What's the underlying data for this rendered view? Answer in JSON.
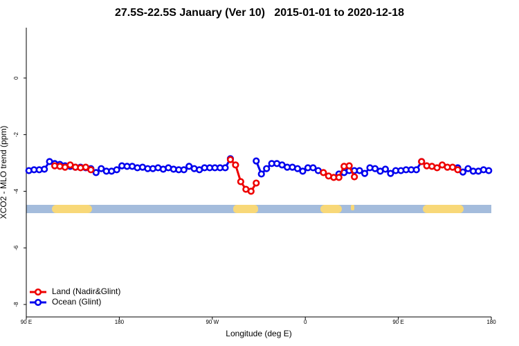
{
  "chart_data": {
    "type": "line",
    "title": "27.5S-22.5S January (Ver 10)   2015-01-01 to 2020-12-18",
    "x_label": "Longitude (deg E)",
    "y_label": "XCO2 - MLO trend (ppm)",
    "xlim": [
      90,
      540
    ],
    "ylim": [
      -8.44,
      1.78
    ],
    "xticks": [
      {
        "value": 90,
        "label": "90 E"
      },
      180,
      {
        "value": 270,
        "label": "90 W"
      },
      {
        "value": 360,
        "label": "0"
      },
      {
        "value": 450,
        "label": "90 E"
      },
      {
        "value": 540,
        "label": "180"
      }
    ],
    "yticks": [
      -8,
      -6,
      -4,
      -2,
      0
    ],
    "legend": "bottom-left",
    "x": [
      92.5,
      97.5,
      102.5,
      107.5,
      112.5,
      117.5,
      122.5,
      127.5,
      132.5,
      137.5,
      142.5,
      147.5,
      152.5,
      157.5,
      162.5,
      167.5,
      172.5,
      177.5,
      182.5,
      187.5,
      192.5,
      197.5,
      202.5,
      207.5,
      212.5,
      217.5,
      222.5,
      227.5,
      232.5,
      237.5,
      242.5,
      247.5,
      252.5,
      257.5,
      262.5,
      267.5,
      272.5,
      277.5,
      282.5,
      287.5,
      292.5,
      297.5,
      302.5,
      307.5,
      312.5,
      317.5,
      322.5,
      327.5,
      332.5,
      337.5,
      342.5,
      347.5,
      352.5,
      357.5,
      362.5,
      367.5,
      372.5,
      377.5,
      382.5,
      387.5,
      392.5,
      397.5,
      402.5,
      407.5,
      412.5,
      417.5,
      422.5,
      427.5,
      432.5,
      437.5,
      442.5,
      447.5,
      452.5,
      457.5,
      462.5,
      467.5,
      472.5,
      477.5,
      482.5,
      487.5,
      492.5,
      497.5,
      502.5,
      507.5,
      512.5,
      517.5,
      522.5,
      527.5,
      532.5,
      537.5
    ],
    "series": [
      {
        "name": "Ocean (Glint)",
        "color": "#0000ee",
        "values": [
          -3.27,
          -3.24,
          -3.24,
          -3.22,
          -2.95,
          -3.02,
          -3.05,
          -3.1,
          -3.12,
          -3.15,
          -3.15,
          -3.17,
          -3.2,
          -3.34,
          -3.2,
          -3.29,
          -3.29,
          -3.24,
          -3.1,
          -3.12,
          -3.12,
          -3.17,
          -3.15,
          -3.2,
          -3.2,
          -3.17,
          -3.22,
          -3.17,
          -3.22,
          -3.24,
          -3.24,
          -3.12,
          -3.2,
          -3.24,
          -3.17,
          -3.17,
          -3.17,
          -3.17,
          -3.17,
          -2.85,
          null,
          null,
          null,
          null,
          -2.93,
          -3.39,
          -3.2,
          -3.02,
          -3.02,
          -3.07,
          -3.15,
          -3.15,
          -3.2,
          -3.29,
          -3.17,
          -3.17,
          -3.27,
          null,
          null,
          null,
          -3.39,
          -3.34,
          -3.27,
          -3.27,
          -3.27,
          -3.37,
          -3.17,
          -3.2,
          -3.29,
          -3.22,
          -3.37,
          -3.27,
          -3.27,
          -3.24,
          -3.24,
          -3.24,
          -2.95,
          null,
          null,
          null,
          null,
          null,
          null,
          -3.17,
          -3.32,
          -3.2,
          -3.29,
          -3.29,
          -3.24,
          -3.27
        ]
      },
      {
        "name": "Land (Nadir&Glint)",
        "color": "#ee0000",
        "values": [
          null,
          null,
          null,
          null,
          null,
          -3.1,
          -3.12,
          -3.15,
          -3.07,
          -3.15,
          -3.17,
          -3.15,
          -3.24,
          null,
          null,
          null,
          null,
          null,
          null,
          null,
          null,
          null,
          null,
          null,
          null,
          null,
          null,
          null,
          null,
          null,
          null,
          null,
          null,
          null,
          null,
          null,
          null,
          null,
          null,
          -2.88,
          -3.07,
          -3.66,
          -3.93,
          -4.0,
          -3.71,
          null,
          null,
          null,
          null,
          null,
          null,
          null,
          null,
          null,
          null,
          null,
          null,
          -3.34,
          -3.46,
          -3.51,
          -3.51,
          -3.12,
          -3.1,
          -3.49,
          null,
          null,
          null,
          null,
          null,
          null,
          null,
          null,
          null,
          null,
          null,
          null,
          -2.95,
          -3.1,
          -3.12,
          -3.17,
          -3.07,
          -3.15,
          -3.15,
          -3.24,
          null,
          null,
          null,
          null,
          null,
          null
        ]
      }
    ]
  }
}
